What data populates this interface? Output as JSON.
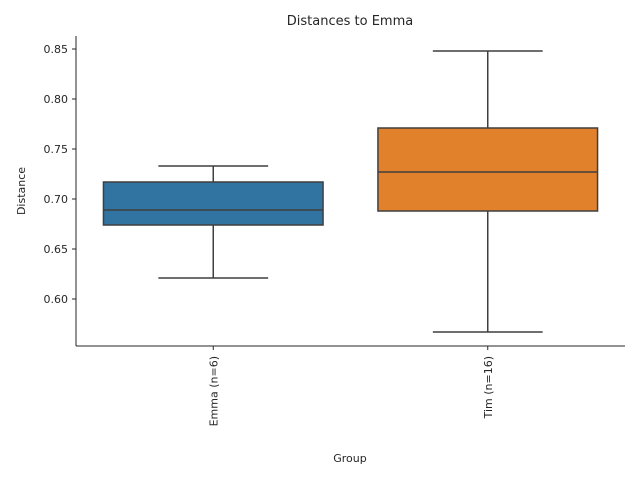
{
  "chart_data": {
    "type": "box",
    "title": "Distances to Emma",
    "xlabel": "Group",
    "ylabel": "Distance",
    "ylim": [
      0.553,
      0.863
    ],
    "yticks": [
      0.6,
      0.65,
      0.7,
      0.75,
      0.8,
      0.85
    ],
    "ytick_labels": [
      "0.60",
      "0.65",
      "0.70",
      "0.75",
      "0.80",
      "0.85"
    ],
    "grid": false,
    "categories": [
      "Emma (n=6)",
      "Tim (n=16)"
    ],
    "boxes": [
      {
        "category": "Emma (n=6)",
        "whisker_low": 0.621,
        "q1": 0.674,
        "median": 0.689,
        "q3": 0.717,
        "whisker_high": 0.733,
        "color": "#3274a1"
      },
      {
        "category": "Tim (n=16)",
        "whisker_low": 0.567,
        "q1": 0.688,
        "median": 0.727,
        "q3": 0.771,
        "whisker_high": 0.848,
        "color": "#e1812c"
      }
    ]
  }
}
